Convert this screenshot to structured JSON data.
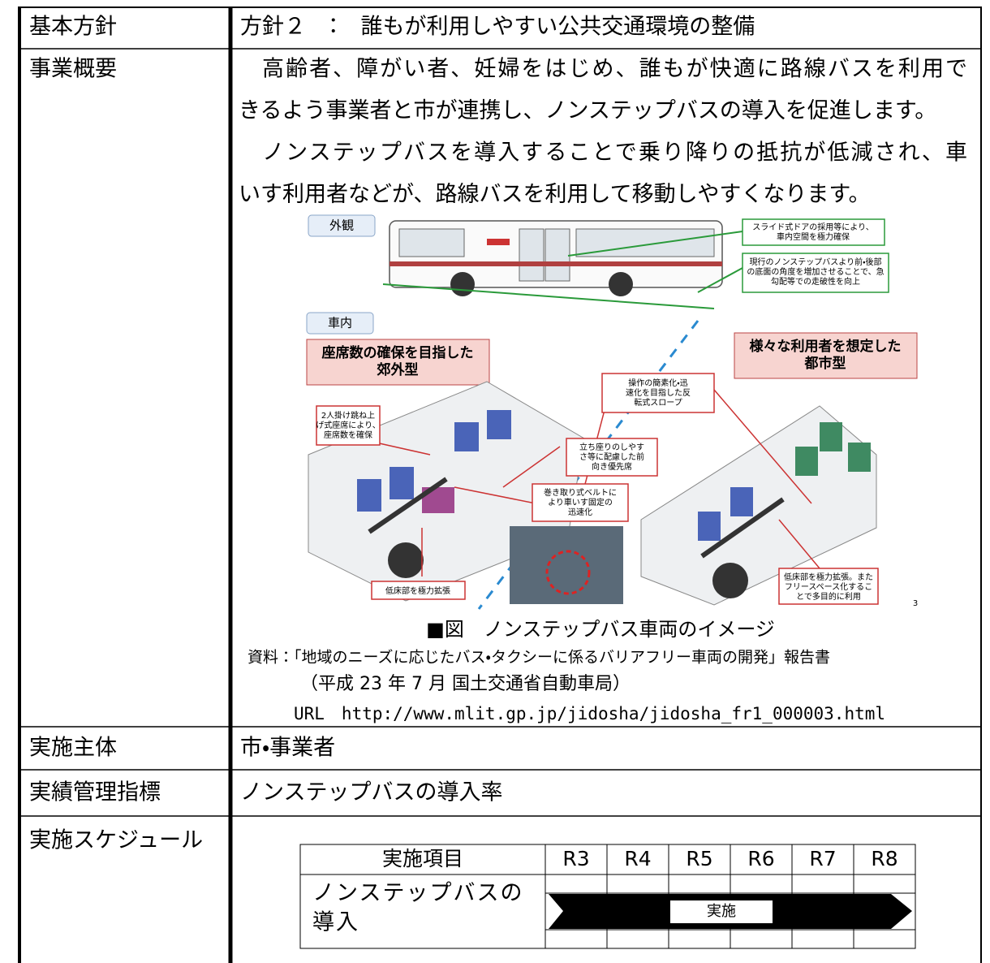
{
  "rows": [
    {
      "label": "基本方針",
      "content": "方針２　：　誰もが利用しやすい公共交通環境の整備"
    },
    {
      "label": "事業概要",
      "paragraphs": [
        [
          "　高齢者、障がい者、妊婦をはじめ、誰もが快適に路線バスを利用で",
          "きるよう事業者と市が連携し、ノンステップバスの導入を促進します。"
        ],
        [
          "　ノンステップバスを導入することで乗り降りの抵抗が低減され、車",
          "いす利用者などが、路線バスを利用して移動しやすくなります。"
        ]
      ],
      "figure": {
        "exterior": "外観",
        "interior": "車内",
        "door_note": [
          "スライド式ドアの採用等により、",
          "車内空間を極力確保"
        ],
        "floor_note": [
          "現行のノンステップバスより前・後部",
          "の底面の角度を増加させることで、急",
          "勾配等での走破性を向上"
        ],
        "suburban": [
          "座席数の確保を目指した",
          "郊外型"
        ],
        "urban": [
          "様々な利用者を想定した",
          "都市型"
        ],
        "seat_note": [
          "2人掛け跳ね上",
          "げ式座席により、",
          "座席数を確保"
        ],
        "slope_note": [
          "操作の簡素化・迅",
          "速化を目指した反",
          "転式スロープ"
        ],
        "priority_note": [
          "立ち座りのしやす",
          "さ等に配慮した前",
          "向き優先席"
        ],
        "belt_note": [
          "巻き取り式ベルトに",
          "より車いす固定の",
          "迅速化"
        ],
        "low_floor_note": "低床部を極力拡張",
        "free_space_note": [
          "低床部を極力拡張。また",
          "フリースペース化するこ",
          "とで多目的に利用"
        ],
        "page_number": "3"
      },
      "caption": "■図　ノンステップバス車両のイメージ",
      "source": [
        "資料：「地域のニーズに応じたバス・タクシーに係るバリアフリー車両の開発」報告書",
        "（平成 23 年 7 月 国土交通省自動車局）",
        "URL　http://www.mlit.gp.jp/jidosha/jidosha_fr1_000003.html"
      ]
    },
    {
      "label": "実施主体",
      "content": "市・事業者"
    },
    {
      "label": "実績管理指標",
      "content": "ノンステップバスの導入率"
    },
    {
      "label": "実施スケジュール",
      "schedule": {
        "header": [
          "実施項目",
          "R3",
          "R4",
          "R5",
          "R6",
          "R7",
          "R8"
        ],
        "item": [
          "ノンステップバスの",
          "導入"
        ],
        "bar_label": "実施"
      }
    }
  ]
}
